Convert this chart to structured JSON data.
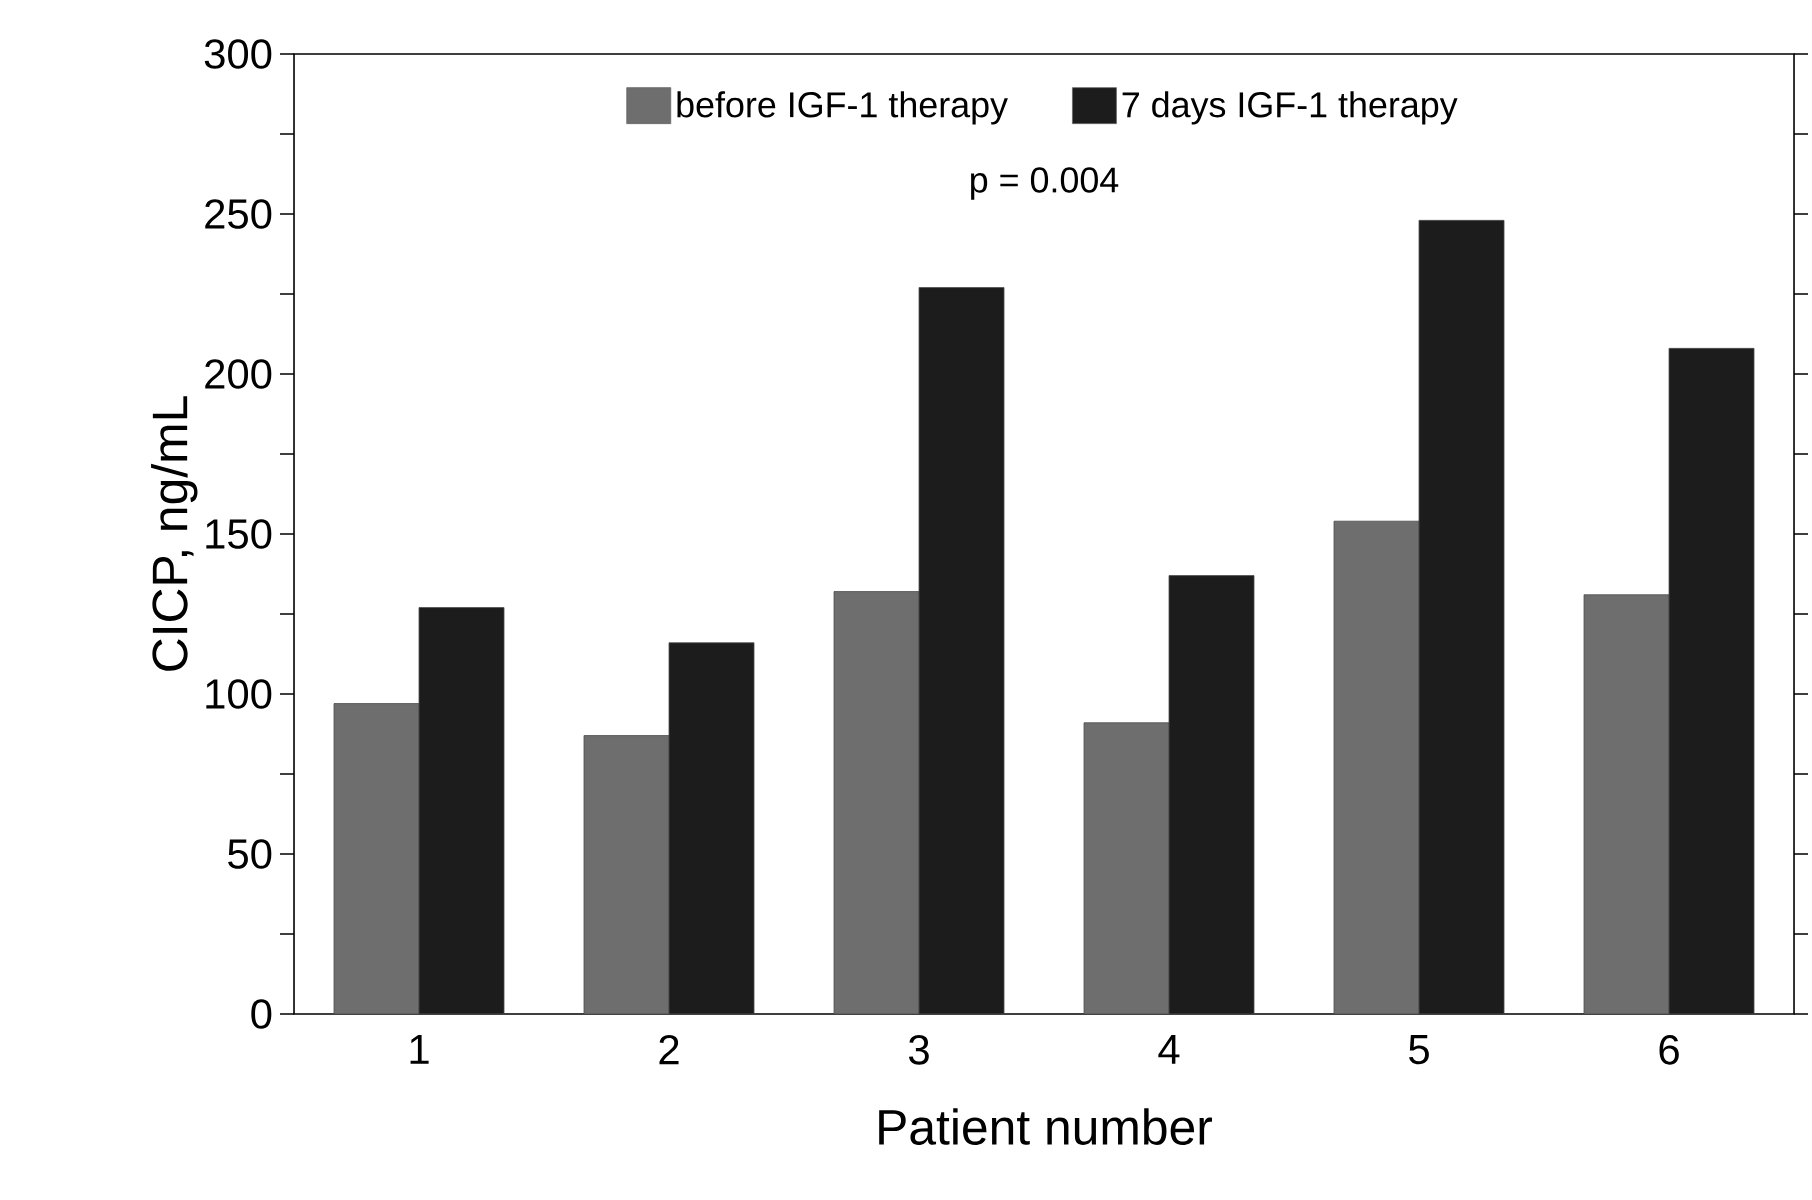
{
  "chart_data": {
    "type": "bar",
    "xlabel": "Patient number",
    "ylabel": "CICP, ng/mL",
    "categories": [
      "1",
      "2",
      "3",
      "4",
      "5",
      "6"
    ],
    "series": [
      {
        "name": "before IGF-1 therapy",
        "color": "#6e6e6e",
        "values": [
          97,
          87,
          132,
          91,
          154,
          131
        ]
      },
      {
        "name": "7 days IGF-1 therapy",
        "color": "#1c1c1c",
        "values": [
          127,
          116,
          227,
          137,
          248,
          208
        ]
      }
    ],
    "ylim": [
      0,
      300
    ],
    "yticks": [
      0,
      {
        "value": 25,
        "label": null
      },
      50,
      {
        "value": 75,
        "label": null
      },
      100,
      {
        "value": 125,
        "label": null
      },
      150,
      {
        "value": 175,
        "label": null
      },
      200,
      {
        "value": 225,
        "label": null
      },
      250,
      {
        "value": 275,
        "label": null
      },
      300
    ],
    "annotations": [
      "p = 0.004"
    ],
    "legend": "top",
    "grid": false
  }
}
